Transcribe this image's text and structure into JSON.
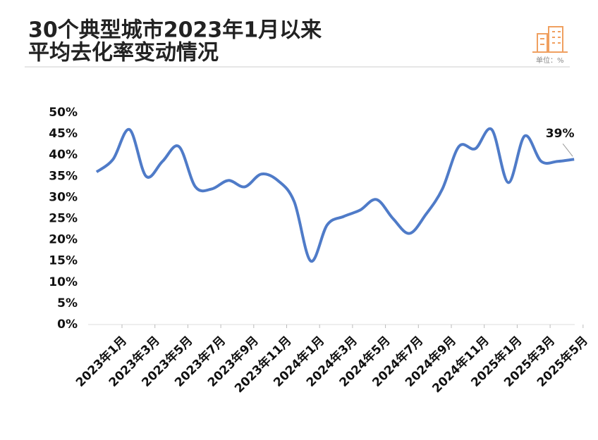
{
  "chart_data": {
    "type": "line",
    "title": [
      "30个典型城市2023年1月以来",
      "平均去化率变动情况"
    ],
    "unit": "单位：%",
    "categories": [
      "2023年1月",
      null,
      "2023年3月",
      null,
      "2023年5月",
      null,
      "2023年7月",
      null,
      "2023年9月",
      null,
      "2023年11月",
      null,
      "2024年1月",
      null,
      "2024年3月",
      null,
      "2024年5月",
      null,
      "2024年7月",
      null,
      "2024年9月",
      null,
      "2024年11月",
      null,
      "2025年1月",
      null,
      "2025年3月",
      null,
      "2025年5月",
      null
    ],
    "series": [
      {
        "color": "#4f7bc8",
        "values": [
          36,
          39,
          46,
          35,
          38.5,
          42,
          32.5,
          32,
          34,
          32.5,
          35.5,
          34,
          29,
          15,
          23.5,
          25.5,
          27,
          29.5,
          25,
          21.5,
          26,
          32,
          42,
          41.5,
          46,
          33.5,
          44.5,
          38.5,
          38.5,
          39
        ],
        "value_labels": [
          null,
          null,
          null,
          null,
          null,
          null,
          null,
          null,
          null,
          null,
          null,
          null,
          null,
          null,
          null,
          null,
          null,
          null,
          null,
          null,
          null,
          null,
          null,
          null,
          null,
          null,
          null,
          null,
          null,
          "39%"
        ]
      }
    ],
    "ylim": [
      0,
      50
    ],
    "yticks": [
      {
        "value": 0,
        "label": "0%"
      },
      {
        "value": 5,
        "label": "5%"
      },
      {
        "value": 10,
        "label": "10%"
      },
      {
        "value": 15,
        "label": "15%"
      },
      {
        "value": 20,
        "label": "20%"
      },
      {
        "value": 25,
        "label": "25%"
      },
      {
        "value": 30,
        "label": "30%"
      },
      {
        "value": 35,
        "label": "35%"
      },
      {
        "value": 40,
        "label": "40%"
      },
      {
        "value": 45,
        "label": "45%"
      },
      {
        "value": 50,
        "label": "50%"
      }
    ],
    "grid": false
  }
}
